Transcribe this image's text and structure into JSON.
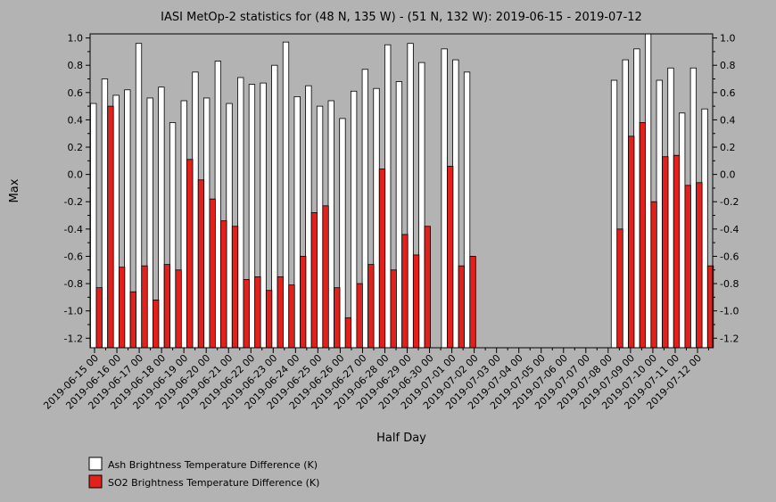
{
  "chart_data": {
    "type": "bar",
    "title": "IASI MetOp-2 statistics for (48 N, 135 W) - (51 N, 132 W): 2019-06-15 - 2019-07-12",
    "xlabel": "Half Day",
    "ylabel": "Max",
    "ylim": [
      -1.27,
      1.03
    ],
    "yticks": [
      -1.2,
      -1.0,
      -0.8,
      -0.6,
      -0.4,
      -0.2,
      0.0,
      0.2,
      0.4,
      0.6,
      0.8,
      1.0
    ],
    "ytick_labels": [
      "-1.2",
      "-1.0",
      "-0.8",
      "-0.6",
      "-0.4",
      "-0.2",
      "0.0",
      "0.2",
      "0.4",
      "0.6",
      "0.8",
      "1.0"
    ],
    "xtick_labels": [
      "2019-06-15 00",
      "2019-06-16 00",
      "2019-06-17 00",
      "2019-06-18 00",
      "2019-06-19 00",
      "2019-06-20 00",
      "2019-06-21 00",
      "2019-06-22 00",
      "2019-06-23 00",
      "2019-06-24 00",
      "2019-06-25 00",
      "2019-06-26 00",
      "2019-06-27 00",
      "2019-06-28 00",
      "2019-06-29 00",
      "2019-06-30 00",
      "2019-07-01 00",
      "2019-07-02 00",
      "2019-07-03 00",
      "2019-07-04 00",
      "2019-07-05 00",
      "2019-07-06 00",
      "2019-07-07 00",
      "2019-07-08 00",
      "2019-07-09 00",
      "2019-07-10 00",
      "2019-07-11 00",
      "2019-07-12 00"
    ],
    "grid": false,
    "legend_position": "bottom-left",
    "series": [
      {
        "name": "Ash Brightness Temperature Difference (K)",
        "color": "#ffffff",
        "values": [
          0.52,
          0.7,
          0.58,
          0.62,
          0.96,
          0.56,
          0.64,
          0.38,
          0.54,
          0.75,
          0.56,
          0.83,
          0.52,
          0.71,
          0.66,
          0.67,
          0.8,
          0.97,
          0.57,
          0.65,
          0.5,
          0.54,
          0.41,
          0.61,
          0.77,
          0.63,
          0.95,
          0.68,
          0.96,
          0.82,
          null,
          0.92,
          0.84,
          0.75,
          null,
          null,
          null,
          null,
          null,
          null,
          null,
          null,
          null,
          null,
          null,
          null,
          0.69,
          0.84,
          0.92,
          1.03,
          0.69,
          0.78,
          0.45,
          0.78,
          0.48
        ]
      },
      {
        "name": "SO2 Brightness Temperature Difference (K)",
        "color": "#e3211c",
        "values": [
          -0.83,
          0.5,
          -0.68,
          -0.86,
          -0.67,
          -0.92,
          -0.66,
          -0.7,
          0.11,
          -0.04,
          -0.18,
          -0.34,
          -0.38,
          -0.77,
          -0.75,
          -0.85,
          -0.75,
          -0.81,
          -0.6,
          -0.28,
          -0.23,
          -0.83,
          -1.05,
          -0.8,
          -0.66,
          0.04,
          -0.7,
          -0.44,
          -0.59,
          -0.38,
          null,
          0.06,
          -0.67,
          -0.6,
          null,
          null,
          null,
          null,
          null,
          null,
          null,
          null,
          null,
          null,
          null,
          null,
          -0.4,
          0.28,
          0.38,
          -0.2,
          0.13,
          0.14,
          -0.08,
          -0.06,
          -0.67
        ]
      }
    ]
  }
}
